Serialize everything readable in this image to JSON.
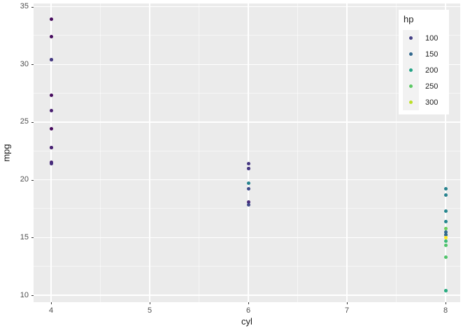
{
  "style": {
    "background": "#FFFFFF",
    "panel_background": "#EBEBEB",
    "grid_major_color": "#FFFFFF",
    "grid_minor_color": "rgba(255,255,255,0.55)",
    "tick_mark_color": "#333333",
    "tick_label_color": "#4D4D4D",
    "axis_title_color": "#1A1A1A",
    "legend_background": "#FFFFFF",
    "legend_key_background": "#F2F2F2"
  },
  "chart_data": {
    "type": "scatter",
    "title": "",
    "xlabel": "cyl",
    "ylabel": "mpg",
    "x_ticks": [
      4,
      5,
      6,
      7,
      8
    ],
    "y_ticks": [
      10,
      15,
      20,
      25,
      30,
      35
    ],
    "xlim": [
      3.82,
      8.15
    ],
    "ylim": [
      9.4,
      35.3
    ],
    "grid": "on",
    "legend": {
      "title": "hp",
      "position": "inside-top-right",
      "entries": [
        {
          "label": "100",
          "color": "#433E85"
        },
        {
          "label": "150",
          "color": "#31688E"
        },
        {
          "label": "200",
          "color": "#23A386"
        },
        {
          "label": "250",
          "color": "#5BC863"
        },
        {
          "label": "300",
          "color": "#BCDF27"
        }
      ]
    },
    "points": [
      {
        "cyl": 6,
        "mpg": 21.0,
        "hp": 110,
        "color": "#453781"
      },
      {
        "cyl": 6,
        "mpg": 21.0,
        "hp": 110,
        "color": "#453781"
      },
      {
        "cyl": 4,
        "mpg": 22.8,
        "hp": 93,
        "color": "#482072"
      },
      {
        "cyl": 6,
        "mpg": 21.4,
        "hp": 110,
        "color": "#453781"
      },
      {
        "cyl": 8,
        "mpg": 18.7,
        "hp": 175,
        "color": "#26828E"
      },
      {
        "cyl": 6,
        "mpg": 18.1,
        "hp": 105,
        "color": "#472A7A"
      },
      {
        "cyl": 8,
        "mpg": 14.3,
        "hp": 245,
        "color": "#4FC46A"
      },
      {
        "cyl": 4,
        "mpg": 24.4,
        "hp": 62,
        "color": "#46085C"
      },
      {
        "cyl": 4,
        "mpg": 22.8,
        "hp": 95,
        "color": "#482173"
      },
      {
        "cyl": 6,
        "mpg": 19.2,
        "hp": 123,
        "color": "#3F4889"
      },
      {
        "cyl": 6,
        "mpg": 17.8,
        "hp": 123,
        "color": "#3F4889"
      },
      {
        "cyl": 8,
        "mpg": 16.4,
        "hp": 180,
        "color": "#24868E"
      },
      {
        "cyl": 8,
        "mpg": 17.3,
        "hp": 180,
        "color": "#24868E"
      },
      {
        "cyl": 8,
        "mpg": 15.2,
        "hp": 180,
        "color": "#24868E"
      },
      {
        "cyl": 8,
        "mpg": 10.4,
        "hp": 205,
        "color": "#1F9E89"
      },
      {
        "cyl": 8,
        "mpg": 10.4,
        "hp": 215,
        "color": "#27AC80"
      },
      {
        "cyl": 8,
        "mpg": 14.7,
        "hp": 230,
        "color": "#3BBA76"
      },
      {
        "cyl": 4,
        "mpg": 32.4,
        "hp": 66,
        "color": "#470B5E"
      },
      {
        "cyl": 4,
        "mpg": 30.4,
        "hp": 52,
        "color": "#450558"
      },
      {
        "cyl": 4,
        "mpg": 33.9,
        "hp": 65,
        "color": "#460A5D"
      },
      {
        "cyl": 4,
        "mpg": 21.5,
        "hp": 97,
        "color": "#482375"
      },
      {
        "cyl": 8,
        "mpg": 15.5,
        "hp": 150,
        "color": "#31688E"
      },
      {
        "cyl": 8,
        "mpg": 15.2,
        "hp": 150,
        "color": "#31688E"
      },
      {
        "cyl": 8,
        "mpg": 13.3,
        "hp": 245,
        "color": "#4FC46A"
      },
      {
        "cyl": 8,
        "mpg": 19.2,
        "hp": 175,
        "color": "#26828E"
      },
      {
        "cyl": 4,
        "mpg": 27.3,
        "hp": 66,
        "color": "#470B5E"
      },
      {
        "cyl": 4,
        "mpg": 26.0,
        "hp": 91,
        "color": "#481F70"
      },
      {
        "cyl": 4,
        "mpg": 30.4,
        "hp": 113,
        "color": "#443A83"
      },
      {
        "cyl": 8,
        "mpg": 15.8,
        "hp": 264,
        "color": "#6BCD5B"
      },
      {
        "cyl": 6,
        "mpg": 19.7,
        "hp": 175,
        "color": "#26828E"
      },
      {
        "cyl": 8,
        "mpg": 15.0,
        "hp": 335,
        "color": "#FDE725"
      },
      {
        "cyl": 4,
        "mpg": 21.4,
        "hp": 109,
        "color": "#462D7D"
      }
    ]
  }
}
